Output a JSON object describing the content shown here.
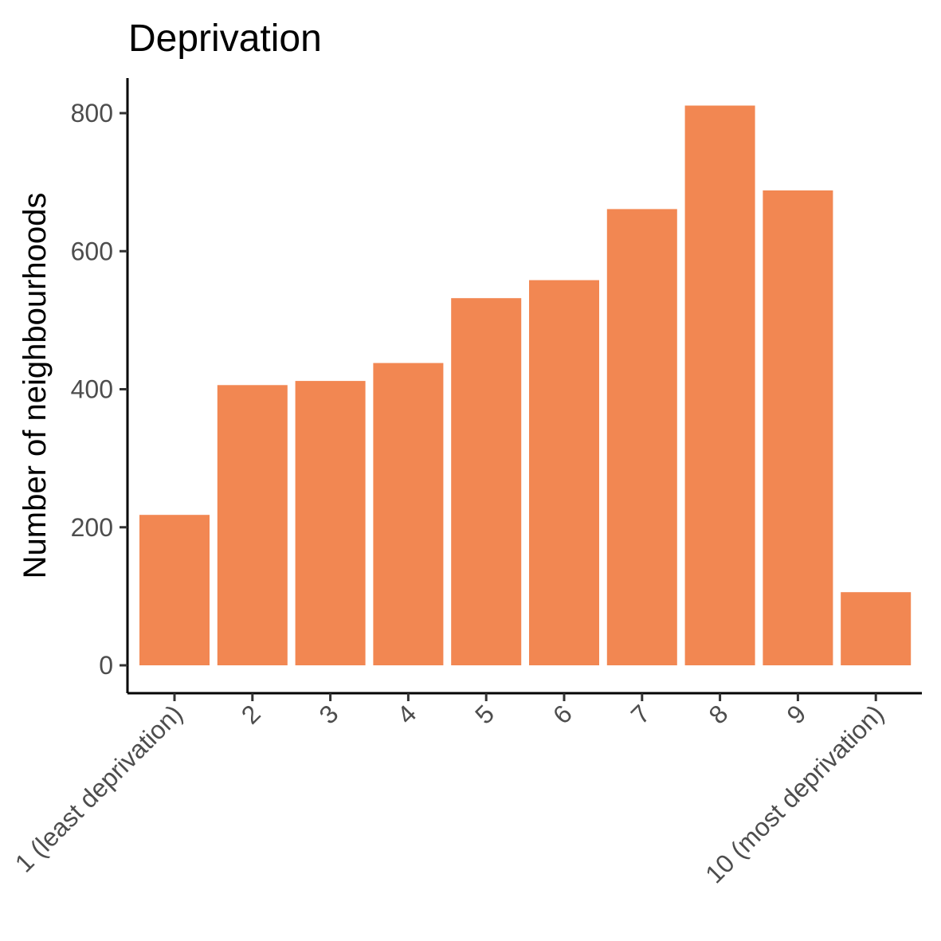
{
  "chart_data": {
    "type": "bar",
    "title": "Deprivation",
    "xlabel": "",
    "ylabel": "Number of neighbourhoods",
    "categories": [
      "1 (least deprivation)",
      "2",
      "3",
      "4",
      "5",
      "6",
      "7",
      "8",
      "9",
      "10 (most deprivation)"
    ],
    "values": [
      218,
      406,
      412,
      438,
      532,
      558,
      661,
      811,
      688,
      106
    ],
    "ylim": [
      0,
      800
    ],
    "yticks": [
      0,
      200,
      400,
      600,
      800
    ],
    "grid": false,
    "legend": "none",
    "bar_color": "#F28752"
  }
}
